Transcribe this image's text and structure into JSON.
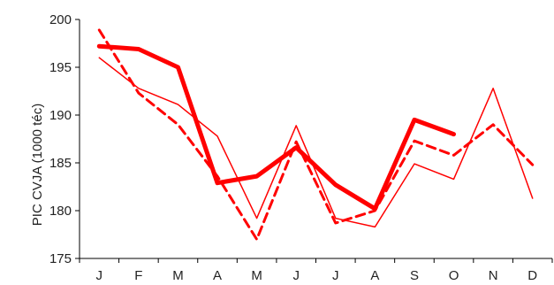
{
  "chart_data": {
    "type": "line",
    "title": "",
    "xlabel": "",
    "ylabel": "PIC  CVJA (1000 téc)",
    "categories": [
      "J",
      "F",
      "M",
      "A",
      "M",
      "J",
      "J",
      "A",
      "S",
      "O",
      "N",
      "D"
    ],
    "ylim": [
      175,
      200
    ],
    "yticks": [
      175,
      180,
      185,
      190,
      195,
      200
    ],
    "grid": false,
    "legend": "none",
    "series": [
      {
        "style": "thick-solid",
        "color": "#ff0000",
        "values": [
          197.2,
          196.9,
          195.0,
          182.9,
          183.6,
          186.6,
          182.7,
          180.2,
          189.5,
          188.0,
          null,
          null
        ]
      },
      {
        "style": "dashed",
        "color": "#ff0000",
        "values": [
          198.9,
          192.3,
          189.0,
          183.6,
          177.0,
          187.2,
          178.7,
          180.0,
          187.3,
          185.8,
          189.0,
          184.8
        ]
      },
      {
        "style": "thin-solid",
        "color": "#ff0000",
        "values": [
          196.0,
          192.8,
          191.1,
          187.8,
          179.2,
          188.9,
          179.2,
          178.3,
          184.9,
          183.3,
          192.8,
          181.3
        ]
      }
    ]
  }
}
